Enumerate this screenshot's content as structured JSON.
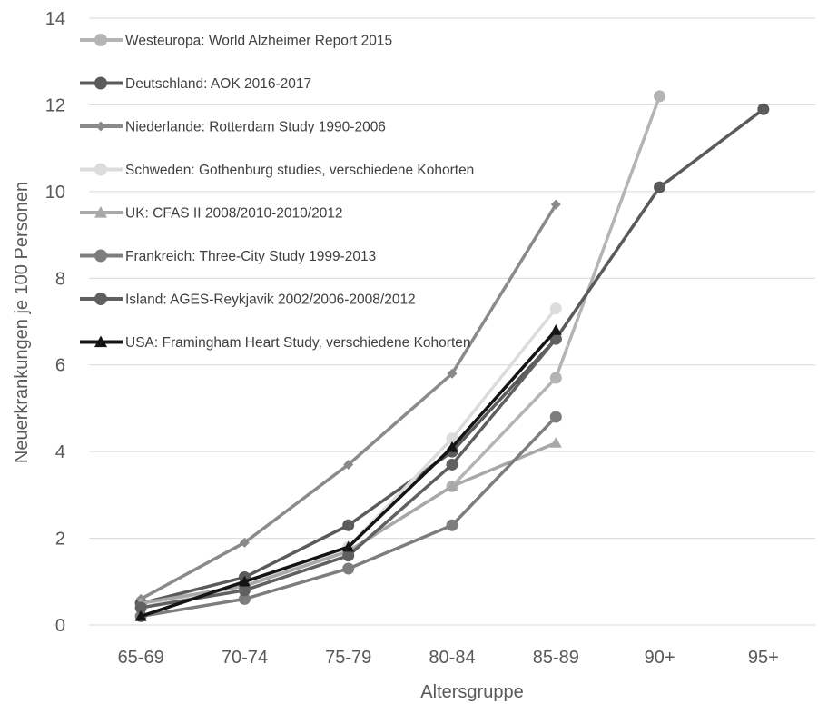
{
  "chart_data": {
    "type": "line",
    "title": "",
    "xlabel": "Altersgruppe",
    "ylabel": "Neuerkrankungen je 100 Personen",
    "categories": [
      "65-69",
      "70-74",
      "75-79",
      "80-84",
      "85-89",
      "90+",
      "95+"
    ],
    "yticks": [
      "0",
      "2",
      "4",
      "6",
      "8",
      "10",
      "12",
      "14"
    ],
    "ylim": [
      0,
      14
    ],
    "grid": true,
    "legend_position": "top-left",
    "series": [
      {
        "name": "Westeuropa: World Alzheimer Report 2015",
        "color": "#b4b4b4",
        "marker": "circle",
        "values": [
          0.5,
          0.9,
          1.7,
          3.2,
          5.7,
          12.2,
          null
        ]
      },
      {
        "name": "Deutschland: AOK 2016-2017",
        "color": "#5a5a5a",
        "marker": "circle",
        "values": [
          0.5,
          1.1,
          2.3,
          4.0,
          6.6,
          10.1,
          11.9
        ]
      },
      {
        "name": "Niederlande: Rotterdam Study 1990-2006",
        "color": "#8a8a8a",
        "marker": "diamond",
        "values": [
          0.6,
          1.9,
          3.7,
          5.8,
          9.7,
          null,
          null
        ]
      },
      {
        "name": "Schweden: Gothenburg studies, verschiedene Kohorten",
        "color": "#dcdcdc",
        "marker": "circle",
        "values": [
          0.4,
          0.9,
          1.8,
          4.3,
          7.3,
          null,
          null
        ]
      },
      {
        "name": "UK: CFAS II 2008/2010-2010/2012",
        "color": "#a8a8a8",
        "marker": "triangle",
        "values": [
          0.5,
          0.9,
          1.7,
          3.2,
          4.2,
          null,
          null
        ]
      },
      {
        "name": "Frankreich: Three-City Study 1999-2013",
        "color": "#7d7d7d",
        "marker": "circle",
        "values": [
          0.2,
          0.6,
          1.3,
          2.3,
          4.8,
          null,
          null
        ]
      },
      {
        "name": "Island: AGES-Reykjavik 2002/2006-2008/2012",
        "color": "#606060",
        "marker": "circle",
        "values": [
          0.4,
          0.8,
          1.6,
          3.7,
          6.6,
          null,
          null
        ]
      },
      {
        "name": "USA: Framingham Heart Study, verschiedene Kohorten",
        "color": "#141414",
        "marker": "triangle",
        "values": [
          0.2,
          1.0,
          1.8,
          4.1,
          6.8,
          null,
          null
        ]
      }
    ]
  }
}
